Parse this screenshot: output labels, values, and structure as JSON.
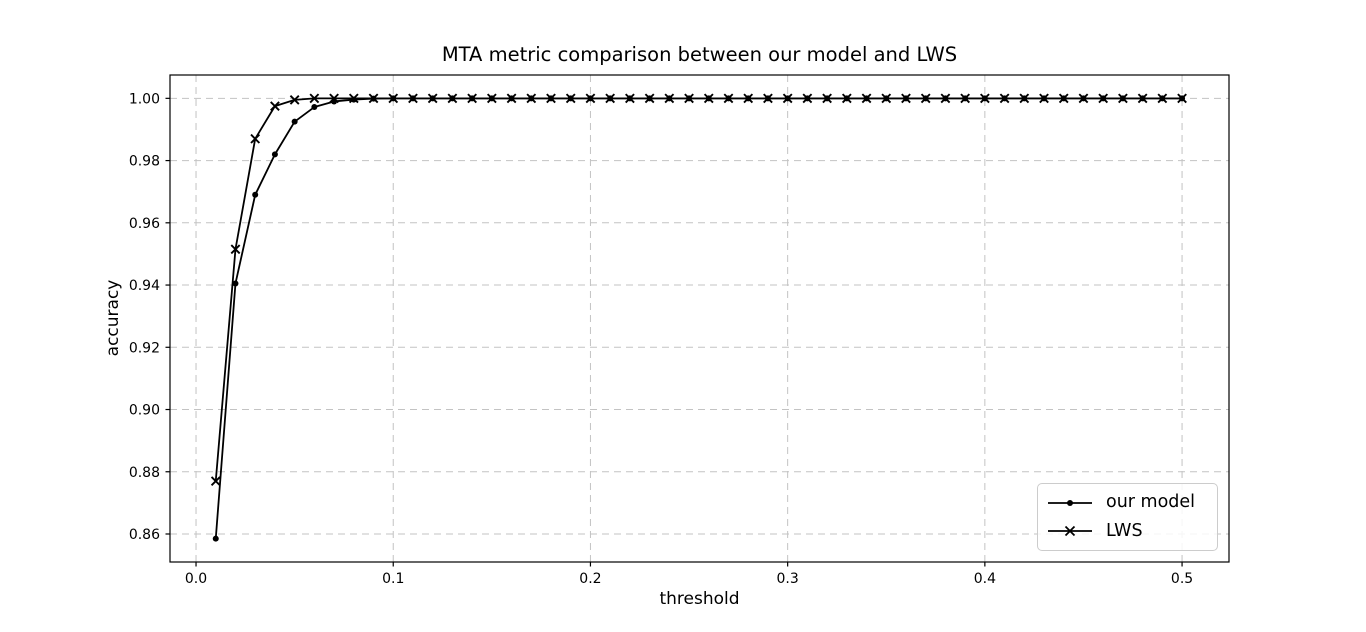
{
  "chart_data": {
    "type": "line",
    "title": "MTA metric comparison between our model and LWS",
    "xlabel": "threshold",
    "ylabel": "accuracy",
    "xlim": [
      -0.0132,
      0.5238
    ],
    "ylim": [
      0.851,
      1.0075
    ],
    "x_ticks": [
      0.0,
      0.1,
      0.2,
      0.3,
      0.4,
      0.5
    ],
    "x_tick_labels": [
      "0.0",
      "0.1",
      "0.2",
      "0.3",
      "0.4",
      "0.5"
    ],
    "y_ticks": [
      0.86,
      0.88,
      0.9,
      0.92,
      0.94,
      0.96,
      0.98,
      1.0
    ],
    "y_tick_labels": [
      "0.86",
      "0.88",
      "0.90",
      "0.92",
      "0.94",
      "0.96",
      "0.98",
      "1.00"
    ],
    "grid": true,
    "grid_style": "dashed",
    "legend_position": "lower right",
    "x": [
      0.01,
      0.02,
      0.03,
      0.04,
      0.05,
      0.06,
      0.07,
      0.08,
      0.09,
      0.1,
      0.11,
      0.12,
      0.13,
      0.14,
      0.15,
      0.16,
      0.17,
      0.18,
      0.19,
      0.2,
      0.21,
      0.22,
      0.23,
      0.24,
      0.25,
      0.26,
      0.27,
      0.28,
      0.29,
      0.3,
      0.31,
      0.32,
      0.33,
      0.34,
      0.35,
      0.36,
      0.37,
      0.38,
      0.39,
      0.4,
      0.41,
      0.42,
      0.43,
      0.44,
      0.45,
      0.46,
      0.47,
      0.48,
      0.49,
      0.5
    ],
    "series": [
      {
        "name": "our model",
        "marker": "dot",
        "color": "#000000",
        "values": [
          0.8585,
          0.9405,
          0.969,
          0.982,
          0.9925,
          0.9972,
          0.999,
          0.9996,
          0.9999,
          1.0,
          1.0,
          1.0,
          1.0,
          1.0,
          1.0,
          1.0,
          1.0,
          1.0,
          1.0,
          1.0,
          1.0,
          1.0,
          1.0,
          1.0,
          1.0,
          1.0,
          1.0,
          1.0,
          1.0,
          1.0,
          1.0,
          1.0,
          1.0,
          1.0,
          1.0,
          1.0,
          1.0,
          1.0,
          1.0,
          1.0,
          1.0,
          1.0,
          1.0,
          1.0,
          1.0,
          1.0,
          1.0,
          1.0,
          1.0,
          1.0
        ]
      },
      {
        "name": "LWS",
        "marker": "x",
        "color": "#000000",
        "values": [
          0.877,
          0.9515,
          0.987,
          0.9975,
          0.9995,
          1.0,
          1.0,
          1.0,
          1.0,
          1.0,
          1.0,
          1.0,
          1.0,
          1.0,
          1.0,
          1.0,
          1.0,
          1.0,
          1.0,
          1.0,
          1.0,
          1.0,
          1.0,
          1.0,
          1.0,
          1.0,
          1.0,
          1.0,
          1.0,
          1.0,
          1.0,
          1.0,
          1.0,
          1.0,
          1.0,
          1.0,
          1.0,
          1.0,
          1.0,
          1.0,
          1.0,
          1.0,
          1.0,
          1.0,
          1.0,
          1.0,
          1.0,
          1.0,
          1.0,
          1.0
        ]
      }
    ]
  },
  "colors": {
    "line": "#000000",
    "gridline": "#c3c3c3",
    "axis_border": "#000000",
    "background": "#ffffff",
    "legend_border": "#cccccc",
    "text": "#000000"
  },
  "legend": {
    "items": [
      {
        "label": "our model",
        "marker": "dot"
      },
      {
        "label": "LWS",
        "marker": "x"
      }
    ]
  }
}
